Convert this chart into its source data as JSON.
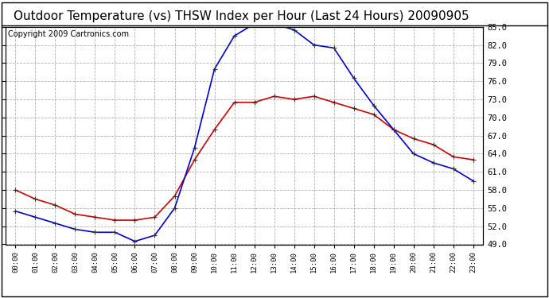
{
  "title": "Outdoor Temperature (vs) THSW Index per Hour (Last 24 Hours) 20090905",
  "copyright": "Copyright 2009 Cartronics.com",
  "hours": [
    "00:00",
    "01:00",
    "02:00",
    "03:00",
    "04:00",
    "05:00",
    "06:00",
    "07:00",
    "08:00",
    "09:00",
    "10:00",
    "11:00",
    "12:00",
    "13:00",
    "14:00",
    "15:00",
    "16:00",
    "17:00",
    "18:00",
    "19:00",
    "20:00",
    "21:00",
    "22:00",
    "23:00"
  ],
  "temp": [
    58.0,
    56.5,
    55.5,
    54.0,
    53.5,
    53.0,
    53.0,
    53.5,
    57.0,
    63.0,
    68.0,
    72.5,
    72.5,
    73.5,
    73.0,
    73.5,
    72.5,
    71.5,
    70.5,
    68.0,
    66.5,
    65.5,
    63.5,
    63.0
  ],
  "thsw": [
    54.5,
    53.5,
    52.5,
    51.5,
    51.0,
    51.0,
    49.5,
    50.5,
    55.0,
    65.0,
    78.0,
    83.5,
    85.5,
    85.5,
    84.5,
    82.0,
    81.5,
    76.5,
    72.0,
    68.0,
    64.0,
    62.5,
    61.5,
    59.5
  ],
  "temp_color": "#cc0000",
  "thsw_color": "#0000cc",
  "ylim_min": 49.0,
  "ylim_max": 85.0,
  "yticks": [
    49.0,
    52.0,
    55.0,
    58.0,
    61.0,
    64.0,
    67.0,
    70.0,
    73.0,
    76.0,
    79.0,
    82.0,
    85.0
  ],
  "bg_color": "#ffffff",
  "plot_bg_color": "#ffffff",
  "grid_color": "#b0b0b0",
  "title_fontsize": 11,
  "copyright_fontsize": 7
}
